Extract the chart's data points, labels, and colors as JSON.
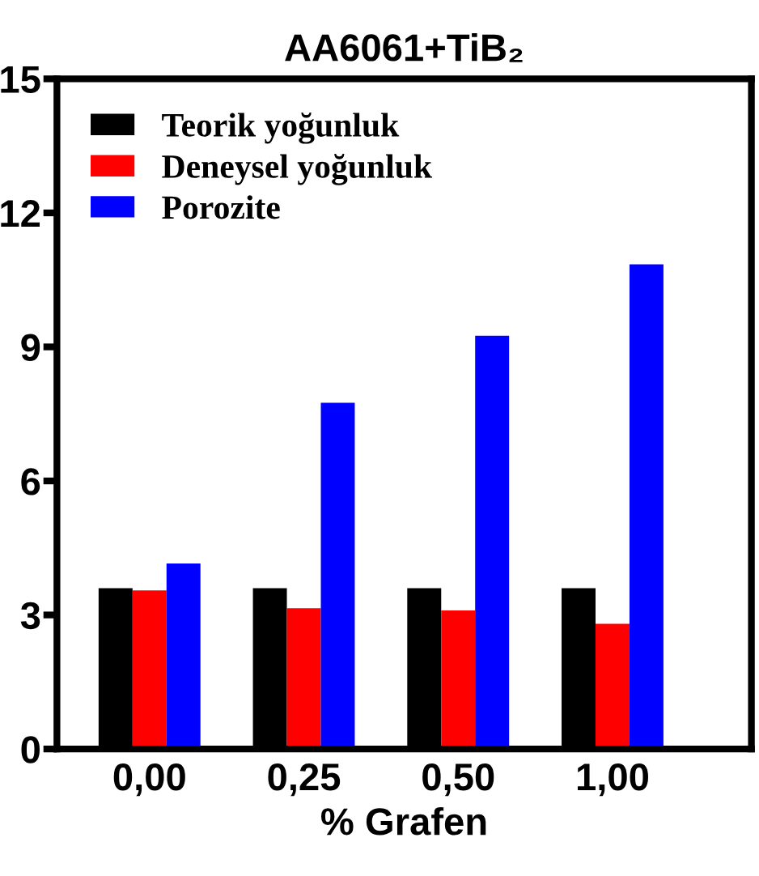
{
  "chart_data": {
    "type": "bar",
    "title": "AA6061+TiB₂",
    "xlabel": "% Grafen",
    "categories": [
      "0,00",
      "0,25",
      "0,50",
      "1,00"
    ],
    "series": [
      {
        "name": "Teorik yoğunluk",
        "color": "#000000",
        "values": [
          3.6,
          3.6,
          3.6,
          3.6
        ]
      },
      {
        "name": "Deneysel yoğunluk",
        "color": "#ff0000",
        "values": [
          3.55,
          3.15,
          3.1,
          2.8
        ]
      },
      {
        "name": "Porozite",
        "color": "#0000ff",
        "values": [
          4.15,
          7.75,
          9.25,
          10.85
        ]
      }
    ],
    "ylim": [
      0,
      15
    ],
    "yticks": [
      0,
      3,
      6,
      9,
      12,
      15
    ],
    "grid": false,
    "legend": "top left"
  }
}
